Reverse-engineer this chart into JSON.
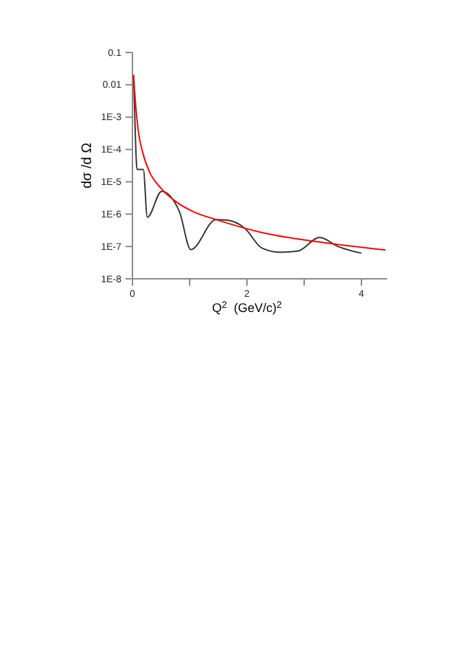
{
  "chart_data": {
    "type": "line",
    "xlabel": "Q$^{2}$  (GeV/c)$^{2}$",
    "ylabel": "dσ /d Ω",
    "log": "y",
    "xlim": [
      0,
      4.45
    ],
    "ylim": [
      1e-08,
      0.1
    ],
    "xticks": [
      0,
      {
        "value": 1,
        "label": null
      },
      2,
      {
        "value": 3,
        "label": null
      },
      4
    ],
    "yticks": [
      {
        "value": 1e-08,
        "label": "1E-8"
      },
      {
        "value": 1e-07,
        "label": "1E-7"
      },
      {
        "value": 1e-06,
        "label": "1E-6"
      },
      {
        "value": 1e-05,
        "label": "1E-5"
      },
      {
        "value": 0.0001,
        "label": "1E-4"
      },
      {
        "value": 0.001,
        "label": "1E-3"
      },
      0.01,
      0.1
    ],
    "marker": "none",
    "line_style": "solid",
    "grid": false,
    "series": [
      {
        "color": "#333333",
        "x": [
          0.02,
          0.05,
          0.08,
          0.19,
          0.26,
          0.51,
          0.82,
          1.02,
          1.46,
          1.66,
          1.96,
          2.26,
          2.59,
          2.89,
          3.27,
          3.59,
          4.0
        ],
        "values": [
          0.02,
          0.0003,
          2.4e-05,
          2.4e-05,
          8e-07,
          5.1e-06,
          1.2e-06,
          8e-08,
          6.8e-07,
          6.5e-07,
          3.7e-07,
          9e-08,
          6.6e-08,
          7.2e-08,
          1.9e-07,
          1e-07,
          6.2e-08
        ]
      },
      {
        "color": "#ff0000",
        "x": [
          0.02,
          0.05,
          0.1,
          0.18,
          0.3,
          0.5,
          0.75,
          1.06,
          1.46,
          2.26,
          3.23,
          4.42
        ],
        "values": [
          0.02,
          0.0032,
          0.0004,
          8e-05,
          2e-05,
          6.3e-06,
          2.5e-06,
          1.2e-06,
          6.8e-07,
          2.7e-07,
          1.4e-07,
          7.8e-08
        ]
      }
    ]
  }
}
